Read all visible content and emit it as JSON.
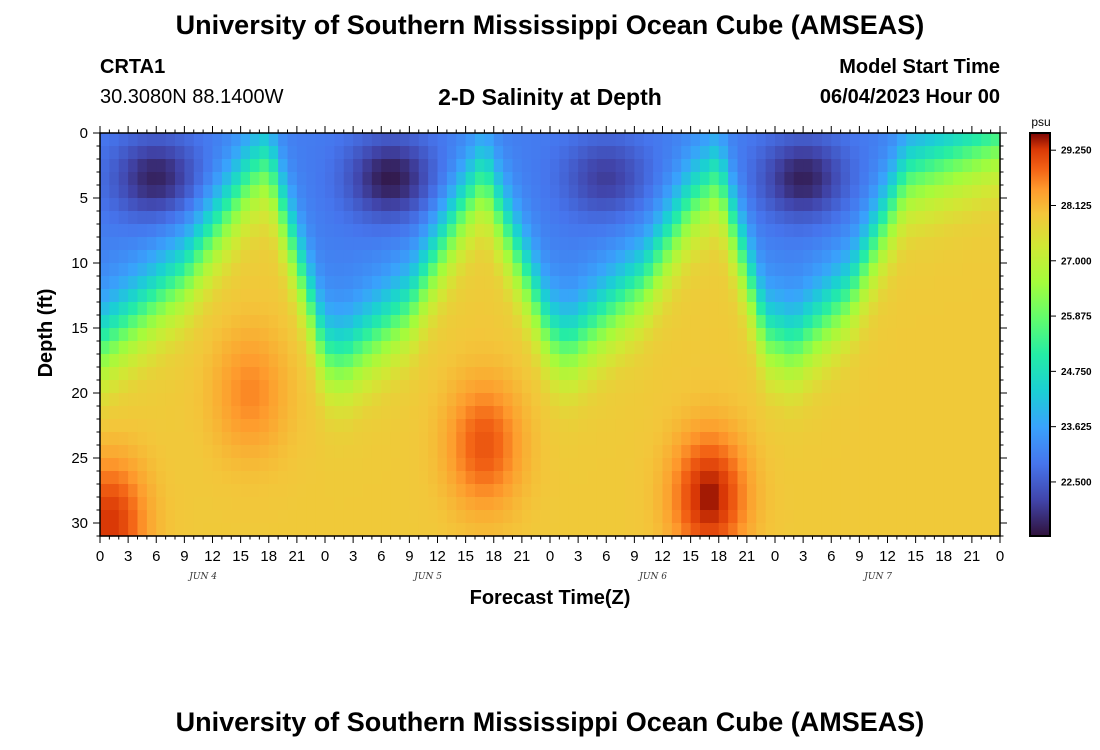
{
  "header": {
    "title": "University of Southern Mississippi Ocean Cube (AMSEAS)",
    "station_id": "CRTA1",
    "coordinates": "30.3080N  88.1400W",
    "subtitle": "2-D Salinity at Depth",
    "model_start_label": "Model Start Time",
    "model_start_value": "06/04/2023 Hour 00"
  },
  "footer": {
    "title": "University of Southern Mississippi Ocean Cube (AMSEAS)"
  },
  "chart_data": {
    "type": "heatmap",
    "title": "2-D Salinity at Depth",
    "xlabel": "Forecast Time(Z)",
    "ylabel": "Depth (ft)",
    "x_range_hours": [
      0,
      96
    ],
    "y_range_ft": [
      0,
      31
    ],
    "x_tick_labels": [
      "0",
      "3",
      "6",
      "9",
      "12",
      "15",
      "18",
      "21",
      "0",
      "3",
      "6",
      "9",
      "12",
      "15",
      "18",
      "21",
      "0",
      "3",
      "6",
      "9",
      "12",
      "15",
      "18",
      "21",
      "0",
      "3",
      "6",
      "9",
      "12",
      "15",
      "18",
      "21",
      "0"
    ],
    "y_ticks": [
      0,
      5,
      10,
      15,
      20,
      25,
      30
    ],
    "day_labels": [
      {
        "label": "JUN 4",
        "hour": 11
      },
      {
        "label": "JUN 5",
        "hour": 35
      },
      {
        "label": "JUN 6",
        "hour": 59
      },
      {
        "label": "JUN 7",
        "hour": 83
      }
    ],
    "colorbar": {
      "unit": "psu",
      "min": 21.4,
      "max": 29.6,
      "tick_values": [
        "29.250",
        "28.125",
        "27.000",
        "25.875",
        "24.750",
        "23.625",
        "22.500"
      ]
    },
    "interface_depth_ft": [
      {
        "hour": 0,
        "depth": 16
      },
      {
        "hour": 9,
        "depth": 10.5
      },
      {
        "hour": 16,
        "depth": 3
      },
      {
        "hour": 18,
        "depth": 2
      },
      {
        "hour": 24,
        "depth": 16.5
      },
      {
        "hour": 26,
        "depth": 17
      },
      {
        "hour": 33,
        "depth": 13
      },
      {
        "hour": 39,
        "depth": 5
      },
      {
        "hour": 41,
        "depth": 3
      },
      {
        "hour": 48,
        "depth": 15
      },
      {
        "hour": 50,
        "depth": 16
      },
      {
        "hour": 58,
        "depth": 11
      },
      {
        "hour": 63,
        "depth": 5
      },
      {
        "hour": 66,
        "depth": 3
      },
      {
        "hour": 71,
        "depth": 15
      },
      {
        "hour": 74,
        "depth": 16
      },
      {
        "hour": 80,
        "depth": 12
      },
      {
        "hour": 86,
        "depth": 3
      },
      {
        "hour": 96,
        "depth": 0
      }
    ],
    "fresh_cores": [
      {
        "hour": 6,
        "depth": 3.5,
        "value": 21.6
      },
      {
        "hour": 31,
        "depth": 3.5,
        "value": 21.5
      },
      {
        "hour": 54,
        "depth": 3.5,
        "value": 22.0
      },
      {
        "hour": 75,
        "depth": 3.5,
        "value": 21.6
      }
    ],
    "salty_cores": [
      {
        "hour": 1,
        "depth": 30,
        "value": 29.3
      },
      {
        "hour": 16,
        "depth": 20,
        "value": 28.6
      },
      {
        "hour": 41,
        "depth": 24,
        "value": 29.0
      },
      {
        "hour": 65,
        "depth": 28,
        "value": 29.5
      }
    ]
  }
}
